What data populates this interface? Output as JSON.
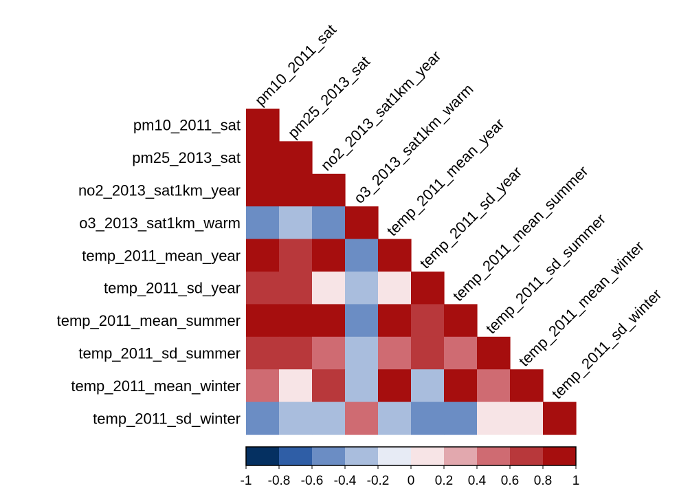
{
  "chart_data": {
    "type": "heatmap",
    "variables": [
      "pm10_2011_sat",
      "pm25_2013_sat",
      "no2_2013_sat1km_year",
      "o3_2013_sat1km_warm",
      "temp_2011_mean_year",
      "temp_2011_sd_year",
      "temp_2011_mean_summer",
      "temp_2011_sd_summer",
      "temp_2011_mean_winter",
      "temp_2011_sd_winter"
    ],
    "values": [
      [
        1.0
      ],
      [
        1.0,
        1.0
      ],
      [
        0.9,
        0.9,
        1.0
      ],
      [
        -0.5,
        -0.3,
        -0.5,
        1.0
      ],
      [
        0.9,
        0.7,
        0.9,
        -0.5,
        1.0
      ],
      [
        0.7,
        0.7,
        0.1,
        -0.3,
        0.1,
        1.0
      ],
      [
        0.9,
        0.9,
        0.9,
        -0.5,
        1.0,
        0.7,
        1.0
      ],
      [
        0.7,
        0.7,
        0.5,
        -0.3,
        0.5,
        0.7,
        0.5,
        1.0
      ],
      [
        0.5,
        0.1,
        0.7,
        -0.3,
        1.0,
        -0.3,
        0.9,
        0.5,
        1.0
      ],
      [
        -0.5,
        -0.3,
        -0.3,
        0.5,
        -0.3,
        -0.5,
        -0.5,
        0.1,
        0.1,
        1.0
      ]
    ],
    "colorbar": {
      "ticks": [
        "-1",
        "-0.8",
        "-0.6",
        "-0.4",
        "-0.2",
        "0",
        "0.2",
        "0.4",
        "0.6",
        "0.8",
        "1"
      ],
      "colors": [
        "#053061",
        "#2F5EA6",
        "#6B8DC4",
        "#A9BDDD",
        "#E7EBF5",
        "#F7E4E6",
        "#E2A8AE",
        "#CF6B72",
        "#B8383B",
        "#A60E0E"
      ]
    },
    "range": [
      -1,
      1
    ]
  }
}
